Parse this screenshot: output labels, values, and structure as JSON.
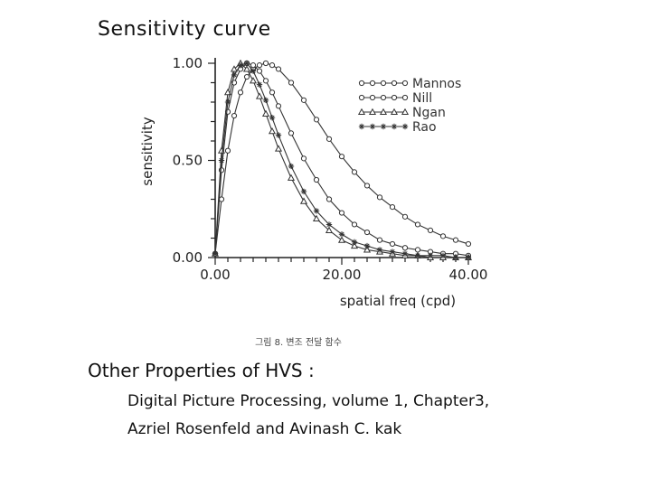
{
  "slide": {
    "title": "Sensitivity curve",
    "section_heading": "Other Properties of HVS :",
    "reference_line_1": "Digital Picture Processing, volume 1, Chapter3,",
    "reference_line_2": "Azriel Rosenfeld and Avinash C. kak",
    "figure_caption": "그림 8. 변조 전달 함수"
  },
  "chart_data": {
    "type": "line",
    "title": "",
    "xlabel": "spatial freq (cpd)",
    "ylabel": "sensitivity",
    "xlim": [
      0,
      40
    ],
    "ylim": [
      0,
      1
    ],
    "x_ticks": [
      "0.00",
      "20.00",
      "40.00"
    ],
    "y_ticks": [
      "0.00",
      "0.50",
      "1.00"
    ],
    "grid": false,
    "legend_position": "top-right",
    "series": [
      {
        "name": "Mannos",
        "marker": "circle",
        "x": [
          0,
          1,
          2,
          3,
          4,
          5,
          6,
          7,
          8,
          9,
          10,
          12,
          14,
          16,
          18,
          20,
          22,
          24,
          26,
          28,
          30,
          32,
          34,
          36,
          38,
          40
        ],
        "y": [
          0.02,
          0.3,
          0.55,
          0.73,
          0.85,
          0.93,
          0.97,
          0.99,
          1.0,
          0.99,
          0.97,
          0.9,
          0.81,
          0.71,
          0.61,
          0.52,
          0.44,
          0.37,
          0.31,
          0.26,
          0.21,
          0.17,
          0.14,
          0.11,
          0.09,
          0.07
        ]
      },
      {
        "name": "Nill",
        "marker": "circle",
        "x": [
          0,
          1,
          2,
          3,
          4,
          5,
          6,
          7,
          8,
          9,
          10,
          12,
          14,
          16,
          18,
          20,
          22,
          24,
          26,
          28,
          30,
          32,
          34,
          36,
          38,
          40
        ],
        "y": [
          0.02,
          0.45,
          0.75,
          0.9,
          0.97,
          1.0,
          0.99,
          0.96,
          0.91,
          0.85,
          0.78,
          0.64,
          0.51,
          0.4,
          0.3,
          0.23,
          0.17,
          0.13,
          0.09,
          0.07,
          0.05,
          0.04,
          0.03,
          0.02,
          0.02,
          0.01
        ]
      },
      {
        "name": "Ngan",
        "marker": "triangle",
        "x": [
          0,
          1,
          2,
          3,
          4,
          5,
          6,
          7,
          8,
          9,
          10,
          12,
          14,
          16,
          18,
          20,
          22,
          24,
          26,
          28,
          30,
          32,
          34,
          36,
          38,
          40
        ],
        "y": [
          0.02,
          0.55,
          0.85,
          0.97,
          1.0,
          0.97,
          0.91,
          0.83,
          0.74,
          0.65,
          0.56,
          0.41,
          0.29,
          0.2,
          0.14,
          0.09,
          0.06,
          0.04,
          0.03,
          0.02,
          0.01,
          0.01,
          0.0,
          0.0,
          0.0,
          0.0
        ]
      },
      {
        "name": "Rao",
        "marker": "star",
        "x": [
          0,
          1,
          2,
          3,
          4,
          5,
          6,
          7,
          8,
          9,
          10,
          12,
          14,
          16,
          18,
          20,
          22,
          24,
          26,
          28,
          30,
          32,
          34,
          36,
          38,
          40
        ],
        "y": [
          0.02,
          0.5,
          0.8,
          0.94,
          0.99,
          1.0,
          0.96,
          0.89,
          0.81,
          0.72,
          0.63,
          0.47,
          0.34,
          0.24,
          0.17,
          0.12,
          0.08,
          0.06,
          0.04,
          0.03,
          0.02,
          0.01,
          0.01,
          0.01,
          0.0,
          0.0
        ]
      }
    ]
  }
}
